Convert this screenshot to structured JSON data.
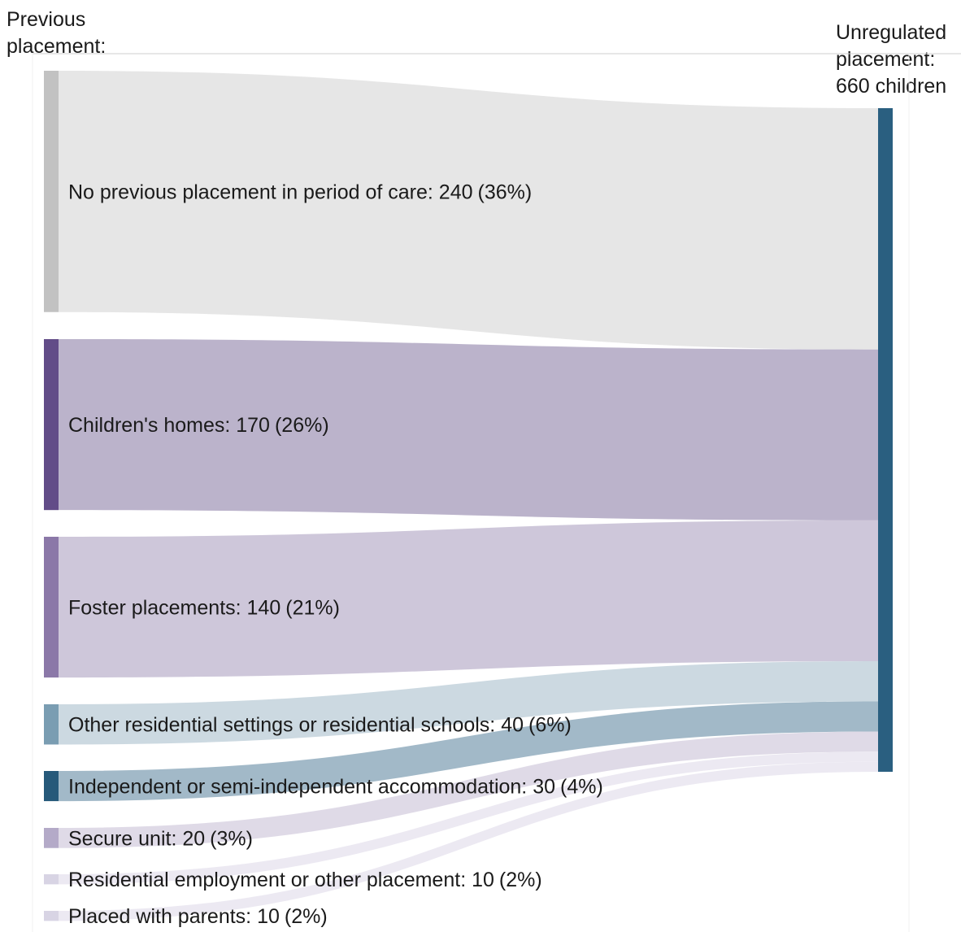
{
  "chart_data": {
    "type": "sankey",
    "source_heading": [
      "Previous",
      "placement:"
    ],
    "target": {
      "label": [
        "Unregulated",
        "placement:",
        "660 children"
      ],
      "value": 660,
      "color": "#2a5f80"
    },
    "sources": [
      {
        "label": "No previous placement in period of care: 240",
        "pct": "(36%)",
        "value": 240,
        "node_color": "#c2c2c2",
        "flow_color": "#e5e5e5"
      },
      {
        "label": "Children's homes: 170",
        "pct": "(26%)",
        "value": 170,
        "node_color": "#624c88",
        "flow_color": "#b7afc8"
      },
      {
        "label": "Foster placements: 140",
        "pct": "(21%)",
        "value": 140,
        "node_color": "#8b78a8",
        "flow_color": "#cbc4d8"
      },
      {
        "label": "Other residential settings or residential schools: 40",
        "pct": "(6%)",
        "value": 40,
        "node_color": "#7a9db2",
        "flow_color": "#c9d7df"
      },
      {
        "label": "Independent or semi-independent accommodation: 30",
        "pct": "(4%)",
        "value": 30,
        "node_color": "#26597a",
        "flow_color": "#9db5c5"
      },
      {
        "label": "Secure unit: 20",
        "pct": "(3%)",
        "value": 20,
        "node_color": "#b4aac8",
        "flow_color": "#ddd8e6"
      },
      {
        "label": "Residential employment or other placement: 10",
        "pct": "(2%)",
        "value": 10,
        "node_color": "#d8d4e4",
        "flow_color": "#ebe8f1"
      },
      {
        "label": "Placed with parents: 10",
        "pct": "(2%)",
        "value": 10,
        "node_color": "#d8d4e4",
        "flow_color": "#ebe8f1"
      }
    ]
  }
}
